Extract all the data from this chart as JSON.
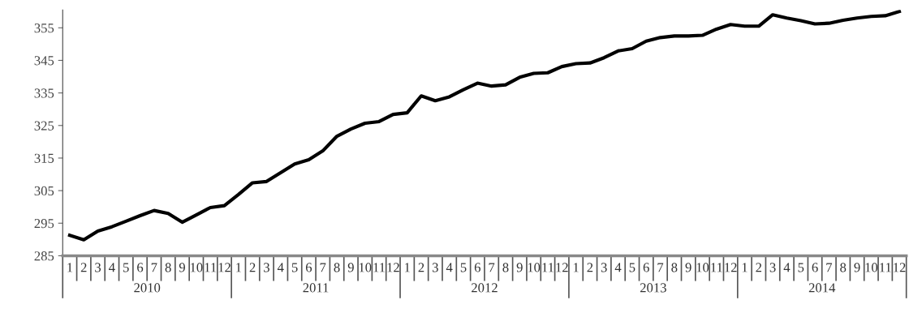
{
  "chart_data": {
    "type": "line",
    "categories": [
      "1",
      "2",
      "3",
      "4",
      "5",
      "6",
      "7",
      "8",
      "9",
      "10",
      "11",
      "12",
      "1",
      "2",
      "3",
      "4",
      "5",
      "6",
      "7",
      "8",
      "9",
      "10",
      "11",
      "12",
      "1",
      "2",
      "3",
      "4",
      "5",
      "6",
      "7",
      "8",
      "9",
      "10",
      "11",
      "12",
      "1",
      "2",
      "3",
      "4",
      "5",
      "6",
      "7",
      "8",
      "9",
      "10",
      "11",
      "12",
      "1",
      "2",
      "3",
      "4",
      "5",
      "6",
      "7",
      "8",
      "9",
      "10",
      "11",
      "12"
    ],
    "series": [
      {
        "color": "#000000",
        "values": [
          291.3,
          289.9,
          292.6,
          293.9,
          295.6,
          297.3,
          298.9,
          298.0,
          295.3,
          297.5,
          299.8,
          300.4,
          303.8,
          307.4,
          307.8,
          310.5,
          313.2,
          314.5,
          317.2,
          321.7,
          323.9,
          325.7,
          326.2,
          328.4,
          328.9,
          334.1,
          332.6,
          333.8,
          336.0,
          338.0,
          337.1,
          337.5,
          339.8,
          341.0,
          341.2,
          343.1,
          344.0,
          344.2,
          345.8,
          347.9,
          348.6,
          350.9,
          352.0,
          352.5,
          352.5,
          352.7,
          354.6,
          356.0,
          355.5,
          355.5,
          359.0,
          358.0,
          357.2,
          356.2,
          356.4,
          357.3,
          358.0,
          358.5,
          358.7,
          360.0
        ]
      }
    ],
    "ylim": [
      285,
      360.5
    ],
    "yticks": [
      285,
      295,
      305,
      315,
      325,
      335,
      345,
      355
    ],
    "annotations": [
      "2010",
      "2011",
      "2012",
      "2013",
      "2014"
    ],
    "grid": false,
    "legend": false,
    "marker": "none",
    "line_style": "solid"
  }
}
